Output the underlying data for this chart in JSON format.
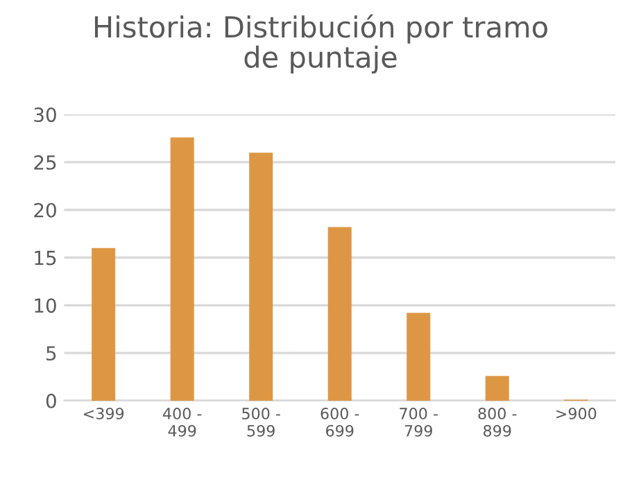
{
  "chart_data": {
    "type": "bar",
    "title": "Historia: Distribución por tramo\nde puntaje",
    "categories": [
      "<399",
      "400 -\n499",
      "500 -\n599",
      "600 -\n699",
      "700 -\n799",
      "800 -\n899",
      ">900"
    ],
    "values": [
      16.0,
      27.6,
      26.0,
      18.2,
      9.2,
      2.6,
      0.1
    ],
    "color": "#dd9744",
    "ylim": [
      0,
      30
    ],
    "yticks": [
      0,
      5,
      10,
      15,
      20,
      25,
      30
    ],
    "grid": "y",
    "legend": false
  }
}
